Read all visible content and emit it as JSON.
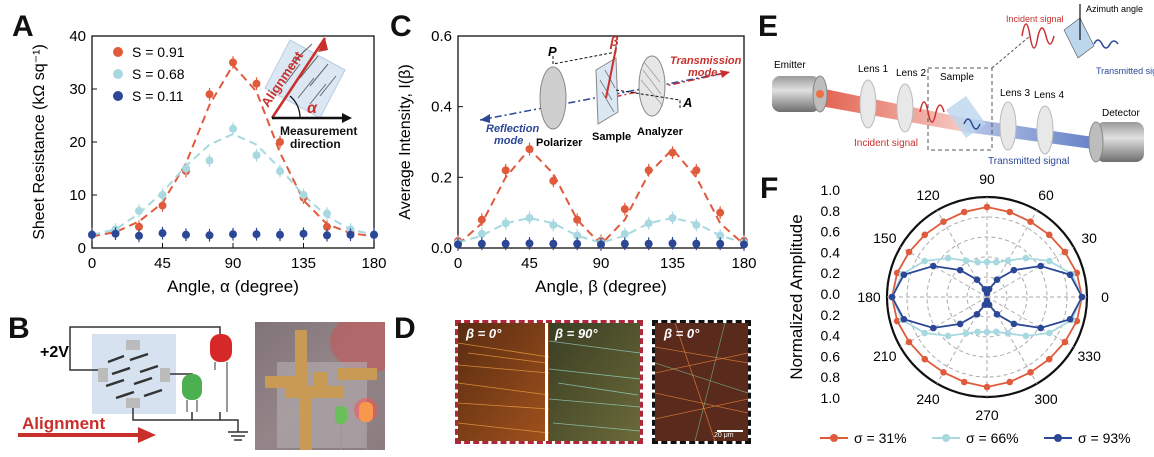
{
  "panels": {
    "A": "A",
    "B": "B",
    "C": "C",
    "D": "D",
    "E": "E",
    "F": "F"
  },
  "panel_b": {
    "voltage": "+2V",
    "alignment": "Alignment"
  },
  "panel_d": {
    "beta0_left": "β = 0°",
    "beta90": "β = 90°",
    "beta0_right": "β = 0°",
    "scalebar": "20 μm"
  },
  "panel_e": {
    "emitter": "Emitter",
    "lens1": "Lens 1",
    "lens2": "Lens 2",
    "sample": "Sample",
    "lens3": "Lens 3",
    "lens4": "Lens 4",
    "detector": "Detector",
    "incident_signal": "Incident signal",
    "transmitted_signal": "Transmitted signal",
    "inset_incident": "Incident signal",
    "inset_transmitted": "Transmitted signal",
    "azimuth": "Azimuth angle"
  },
  "chart_data": [
    {
      "id": "A",
      "type": "scatter",
      "xlabel": "Angle, α (degree)",
      "ylabel": "Sheet Resistance (kΩ sq⁻¹)",
      "xlim": [
        0,
        180
      ],
      "ylim": [
        0,
        40
      ],
      "xticks": [
        0,
        45,
        90,
        135,
        180
      ],
      "yticks": [
        0,
        10,
        20,
        30,
        40
      ],
      "legend_position": "top-left",
      "inset_labels": {
        "alignment": "Alignment",
        "alpha": "α",
        "measurement": "Measurement",
        "direction": "direction"
      },
      "series": [
        {
          "name": "S = 0.91",
          "color": "#e05a3c",
          "x": [
            0,
            15,
            30,
            45,
            60,
            75,
            90,
            105,
            120,
            135,
            150,
            165,
            180
          ],
          "y": [
            2.5,
            3.0,
            4.0,
            8.0,
            14.5,
            29.0,
            35.0,
            31.0,
            20.0,
            9.5,
            4.0,
            3.0,
            2.5
          ],
          "fit": [
            2.2,
            3.0,
            5.0,
            8.5,
            16.0,
            27.0,
            34.5,
            29.5,
            18.0,
            9.0,
            4.5,
            2.8,
            2.2
          ]
        },
        {
          "name": "S = 0.68",
          "color": "#a8d8e0",
          "x": [
            0,
            15,
            30,
            45,
            60,
            75,
            90,
            105,
            120,
            135,
            150,
            165,
            180
          ],
          "y": [
            2.6,
            3.5,
            7.0,
            10.0,
            15.0,
            16.5,
            22.5,
            17.5,
            14.5,
            10.0,
            6.5,
            3.5,
            2.6
          ],
          "fit": [
            2.5,
            3.5,
            6.5,
            10.5,
            15.5,
            19.5,
            21.5,
            19.5,
            15.0,
            10.0,
            6.0,
            3.5,
            2.5
          ]
        },
        {
          "name": "S = 0.11",
          "color": "#2b4796",
          "x": [
            0,
            15,
            30,
            45,
            60,
            75,
            90,
            105,
            120,
            135,
            150,
            165,
            180
          ],
          "y": [
            2.5,
            2.7,
            2.3,
            2.8,
            2.5,
            2.4,
            2.6,
            2.6,
            2.5,
            2.7,
            2.4,
            2.5,
            2.5
          ]
        }
      ]
    },
    {
      "id": "C",
      "type": "scatter",
      "xlabel": "Angle, β (degree)",
      "ylabel": "Average Intensity, I(β)",
      "xlim": [
        0,
        180
      ],
      "ylim": [
        0,
        0.6
      ],
      "xticks": [
        0,
        45,
        90,
        135,
        180
      ],
      "yticks": [
        0.0,
        0.2,
        0.4,
        0.6
      ],
      "inset_labels": {
        "P": "P",
        "beta": "β",
        "A": "A",
        "transmission": "Transmission",
        "mode_t": "mode",
        "reflection": "Reflection",
        "mode_r": "mode",
        "polarizer": "Polarizer",
        "sample": "Sample",
        "analyzer": "Analyzer"
      },
      "series": [
        {
          "color": "#e05a3c",
          "x": [
            0,
            15,
            30,
            45,
            60,
            75,
            90,
            105,
            120,
            135,
            150,
            165,
            180
          ],
          "y": [
            0.02,
            0.08,
            0.22,
            0.28,
            0.19,
            0.08,
            0.02,
            0.11,
            0.22,
            0.27,
            0.22,
            0.1,
            0.02
          ],
          "fit": [
            0.01,
            0.07,
            0.2,
            0.28,
            0.21,
            0.08,
            0.01,
            0.08,
            0.21,
            0.28,
            0.2,
            0.07,
            0.01
          ]
        },
        {
          "color": "#a8d8e0",
          "x": [
            0,
            15,
            30,
            45,
            60,
            75,
            90,
            105,
            120,
            135,
            150,
            165,
            180
          ],
          "y": [
            0.015,
            0.04,
            0.07,
            0.085,
            0.065,
            0.035,
            0.015,
            0.04,
            0.07,
            0.085,
            0.065,
            0.035,
            0.015
          ],
          "fit": [
            0.015,
            0.035,
            0.07,
            0.085,
            0.07,
            0.035,
            0.015,
            0.035,
            0.07,
            0.085,
            0.07,
            0.035,
            0.015
          ]
        },
        {
          "color": "#2b4796",
          "x": [
            0,
            15,
            30,
            45,
            60,
            75,
            90,
            105,
            120,
            135,
            150,
            165,
            180
          ],
          "y": [
            0.01,
            0.012,
            0.012,
            0.013,
            0.012,
            0.012,
            0.01,
            0.012,
            0.012,
            0.013,
            0.012,
            0.012,
            0.01
          ]
        }
      ]
    },
    {
      "id": "F",
      "type": "polar",
      "ylabel": "Normalized Amplitude",
      "rticks": [
        "1.0",
        "0.8",
        "0.6",
        "0.4",
        "0.2",
        "0.0",
        "0.2",
        "0.4",
        "0.6",
        "0.8",
        "1.0"
      ],
      "angle_ticks": [
        0,
        30,
        60,
        90,
        120,
        150,
        180,
        210,
        240,
        270,
        300,
        330
      ],
      "series": [
        {
          "name": "σ = 31%",
          "color": "#e05a3c",
          "theta": [
            0,
            15,
            30,
            45,
            60,
            75,
            90,
            105,
            120,
            135,
            150,
            165,
            180,
            195,
            210,
            225,
            240,
            255,
            270,
            285,
            300,
            315,
            330,
            345
          ],
          "r": [
            0.95,
            0.93,
            0.9,
            0.88,
            0.87,
            0.88,
            0.9,
            0.88,
            0.87,
            0.88,
            0.9,
            0.93,
            0.95,
            0.93,
            0.9,
            0.88,
            0.87,
            0.88,
            0.9,
            0.88,
            0.87,
            0.88,
            0.9,
            0.93
          ]
        },
        {
          "name": "σ = 66%",
          "color": "#a8d8e0",
          "theta": [
            0,
            15,
            30,
            45,
            60,
            75,
            90,
            105,
            120,
            135,
            150,
            165,
            180,
            195,
            210,
            225,
            240,
            255,
            270,
            285,
            300,
            315,
            330,
            345
          ],
          "r": [
            0.95,
            0.88,
            0.72,
            0.55,
            0.42,
            0.36,
            0.35,
            0.36,
            0.42,
            0.55,
            0.72,
            0.88,
            0.95,
            0.88,
            0.72,
            0.55,
            0.42,
            0.36,
            0.35,
            0.36,
            0.42,
            0.55,
            0.72,
            0.88
          ]
        },
        {
          "name": "σ = 93%",
          "color": "#2b4796",
          "theta": [
            0,
            15,
            30,
            45,
            60,
            75,
            90,
            105,
            120,
            135,
            150,
            165,
            180,
            195,
            210,
            225,
            240,
            255,
            270,
            285,
            300,
            315,
            330,
            345
          ],
          "r": [
            0.95,
            0.86,
            0.62,
            0.38,
            0.2,
            0.08,
            0.04,
            0.08,
            0.2,
            0.38,
            0.62,
            0.86,
            0.95,
            0.86,
            0.62,
            0.38,
            0.2,
            0.08,
            0.04,
            0.08,
            0.2,
            0.38,
            0.62,
            0.86
          ]
        }
      ]
    }
  ]
}
